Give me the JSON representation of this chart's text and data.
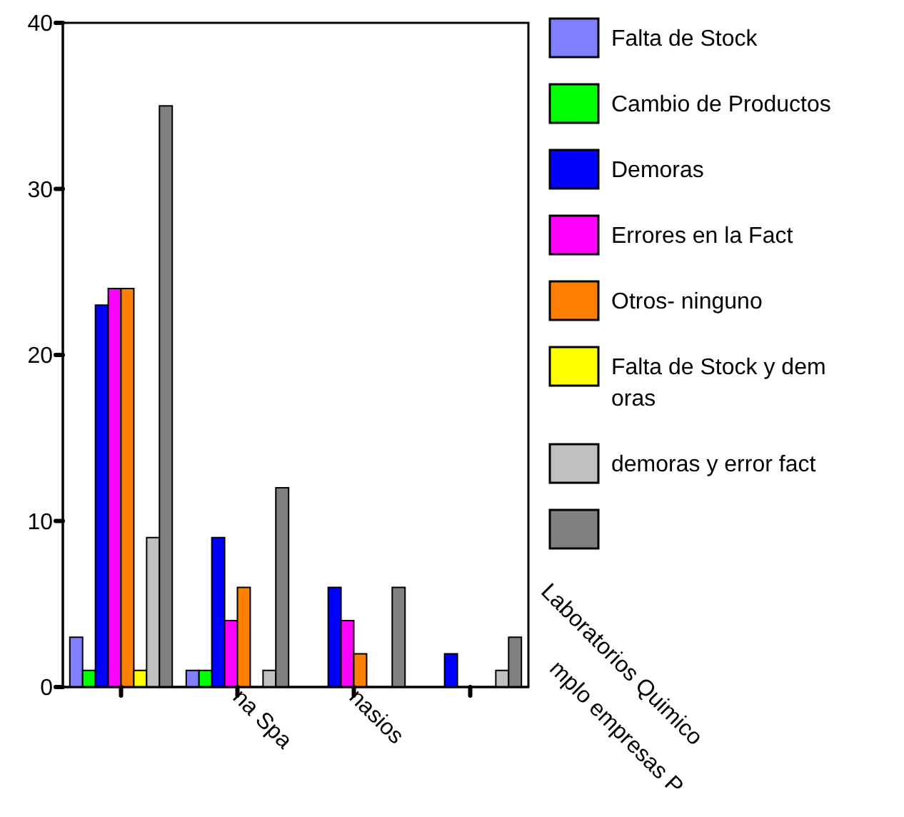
{
  "chart_data": {
    "type": "bar",
    "categories": [
      null,
      "na Spa",
      "nasios",
      null
    ],
    "series": [
      {
        "name": "Falta de Stock",
        "color": "#8080ff",
        "values": [
          3,
          1,
          0,
          0
        ]
      },
      {
        "name": "Cambio de Productos",
        "color": "#00ff00",
        "values": [
          1,
          1,
          0,
          0
        ]
      },
      {
        "name": "Demoras",
        "color": "#0000ff",
        "values": [
          23,
          9,
          6,
          2
        ]
      },
      {
        "name": "Errores en la Fact",
        "color": "#ff00ff",
        "values": [
          24,
          4,
          4,
          0
        ]
      },
      {
        "name": "Otros- ninguno",
        "color": "#ff8000",
        "values": [
          24,
          6,
          2,
          0
        ]
      },
      {
        "name": "Falta de Stock y demoras",
        "color": "#ffff00",
        "values": [
          1,
          0,
          0,
          0
        ]
      },
      {
        "name": "demoras y error fact",
        "color": "#c0c0c0",
        "values": [
          9,
          1,
          0,
          1
        ]
      },
      {
        "color": "#808080",
        "values": [
          35,
          12,
          6,
          3
        ]
      }
    ],
    "ylim": [
      0,
      40
    ],
    "yticks": [
      0,
      10,
      20,
      30,
      40
    ],
    "grid": false,
    "legend": "right",
    "annotations": [
      "Laboratorios Quimico",
      "mplo empresas P"
    ]
  }
}
